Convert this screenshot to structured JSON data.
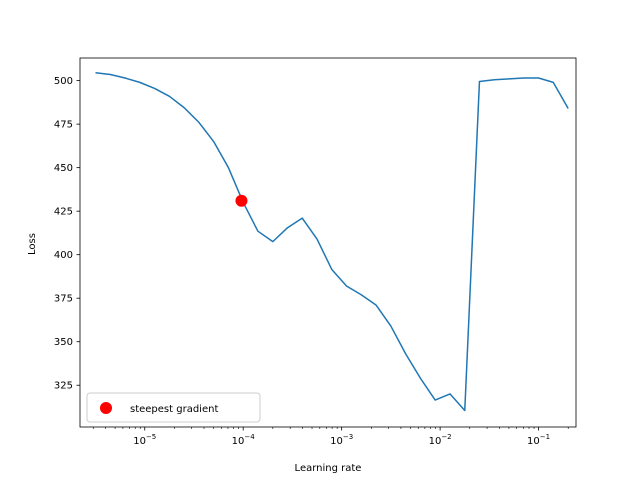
{
  "chart_data": {
    "type": "line",
    "title": "",
    "xlabel": "Learning rate",
    "ylabel": "Loss",
    "xscale": "log",
    "xlim": [
      2.2e-06,
      0.24
    ],
    "ylim": [
      301,
      513
    ],
    "grid": false,
    "legend_placement": "lower-left",
    "x_ticks": [
      {
        "value": 1e-05,
        "label": "10",
        "exp": "−5"
      },
      {
        "value": 0.0001,
        "label": "10",
        "exp": "−4"
      },
      {
        "value": 0.001,
        "label": "10",
        "exp": "−3"
      },
      {
        "value": 0.01,
        "label": "10",
        "exp": "−2"
      },
      {
        "value": 0.1,
        "label": "10",
        "exp": "−1"
      }
    ],
    "y_ticks": [
      325,
      350,
      375,
      400,
      425,
      450,
      475,
      500
    ],
    "series": [
      {
        "color": "#1f77b4",
        "x": [
          3.16e-06,
          4.47e-06,
          6.31e-06,
          8.91e-06,
          1.26e-05,
          1.78e-05,
          2.51e-05,
          3.55e-05,
          5.01e-05,
          7.08e-05,
          0.0001,
          0.000141,
          0.0002,
          0.000282,
          0.000398,
          0.000562,
          0.000794,
          0.00112,
          0.00158,
          0.00224,
          0.00316,
          0.00447,
          0.00631,
          0.00891,
          0.0126,
          0.0178,
          0.0251,
          0.0355,
          0.0501,
          0.0708,
          0.1,
          0.141,
          0.2
        ],
        "y": [
          504.5,
          503.5,
          501.5,
          499,
          495.5,
          491,
          484.5,
          476,
          465,
          450,
          430,
          413.5,
          407.5,
          415.5,
          421,
          409,
          391.5,
          382,
          377,
          371,
          359,
          343,
          329,
          316.5,
          320,
          310.5,
          499.5,
          500.5,
          501,
          501.5,
          501.5,
          499,
          484
        ]
      }
    ],
    "markers": [
      {
        "name": "steepest gradient",
        "x": 9.6e-05,
        "y": 431,
        "color": "#ff0000"
      }
    ]
  }
}
